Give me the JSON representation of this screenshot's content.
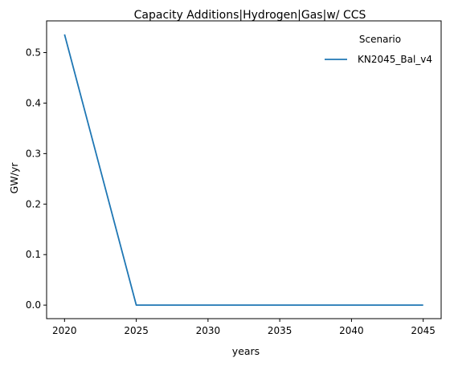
{
  "chart_data": {
    "type": "line",
    "title": "Capacity Additions|Hydrogen|Gas|w/ CCS",
    "xlabel": "years",
    "ylabel": "GW/yr",
    "x": [
      2020,
      2025,
      2030,
      2035,
      2040,
      2045
    ],
    "series": [
      {
        "name": "KN2045_Bal_v4",
        "color": "#1f77b4",
        "values": [
          0.536,
          0.0,
          0.0,
          0.0,
          0.0,
          0.0
        ]
      }
    ],
    "xlim": [
      2018.75,
      2046.25
    ],
    "ylim": [
      -0.0268,
      0.5628
    ],
    "xticks": [
      "2020",
      "2025",
      "2030",
      "2035",
      "2040",
      "2045"
    ],
    "yticks": [
      "0.0",
      "0.1",
      "0.2",
      "0.3",
      "0.4",
      "0.5"
    ],
    "grid": false,
    "legend": {
      "title": "Scenario",
      "placement": "top-right"
    }
  }
}
